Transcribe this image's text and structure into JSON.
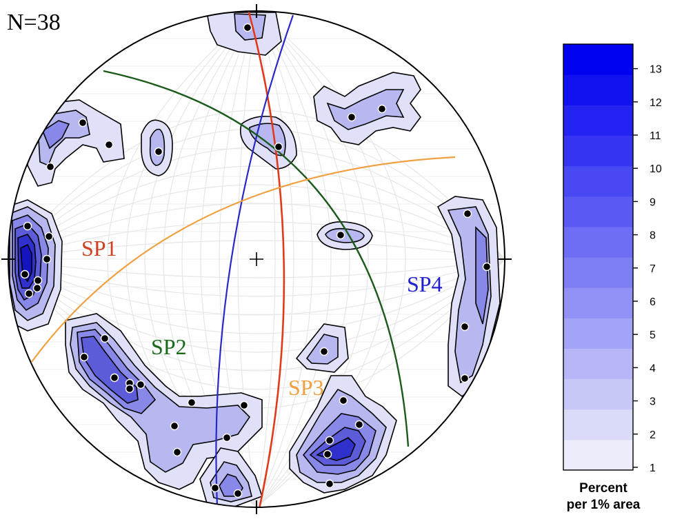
{
  "n_label": "N=38",
  "planes": [
    {
      "name": "SP1",
      "color": "#d04020"
    },
    {
      "name": "SP2",
      "color": "#1a6a1a"
    },
    {
      "name": "SP3",
      "color": "#f0a040"
    },
    {
      "name": "SP4",
      "color": "#2020d0"
    }
  ],
  "colorbar": {
    "ticks": [
      "1",
      "2",
      "3",
      "4",
      "5",
      "6",
      "7",
      "8",
      "9",
      "10",
      "11",
      "12",
      "13"
    ],
    "title_line1": "Percent",
    "title_line2": "per 1% area"
  },
  "colors": {
    "great_circle_red": "#e03a1a",
    "great_circle_blue": "#2828c8",
    "great_circle_green": "#1a5a1a",
    "great_circle_orange": "#f0a040",
    "contour_low": "#e8e8fa",
    "contour_high": "#0000f0"
  }
}
